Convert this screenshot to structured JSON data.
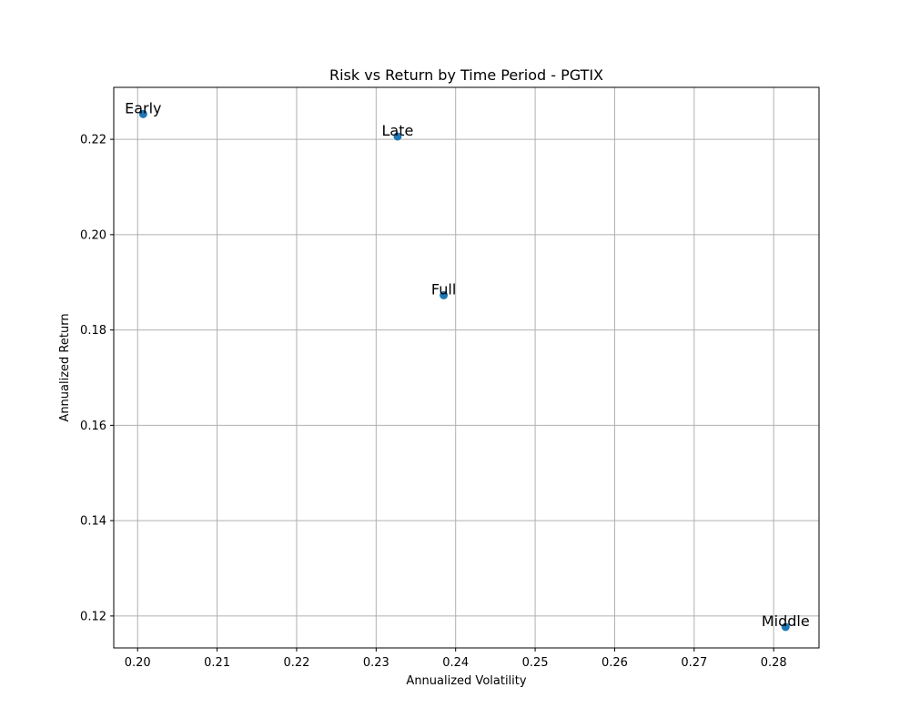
{
  "chart_data": {
    "type": "scatter",
    "title": "Risk vs Return by Time Period - PGTIX",
    "xlabel": "Annualized Volatility",
    "ylabel": "Annualized Return",
    "xlim": [
      0.197,
      0.2857
    ],
    "ylim": [
      0.1133,
      0.2309
    ],
    "xticks": [
      0.2,
      0.21,
      0.22,
      0.23,
      0.24,
      0.25,
      0.26,
      0.27,
      0.28
    ],
    "xtick_labels": [
      "0.20",
      "0.21",
      "0.22",
      "0.23",
      "0.24",
      "0.25",
      "0.26",
      "0.27",
      "0.28"
    ],
    "yticks": [
      0.12,
      0.14,
      0.16,
      0.18,
      0.2,
      0.22
    ],
    "ytick_labels": [
      "0.12",
      "0.14",
      "0.16",
      "0.18",
      "0.20",
      "0.22"
    ],
    "grid": true,
    "marker_color": "#1f77b4",
    "points": [
      {
        "label": "Early",
        "x": 0.2007,
        "y": 0.2253
      },
      {
        "label": "Late",
        "x": 0.2327,
        "y": 0.2206
      },
      {
        "label": "Full",
        "x": 0.2385,
        "y": 0.1873
      },
      {
        "label": "Middle",
        "x": 0.2815,
        "y": 0.1177
      }
    ]
  }
}
